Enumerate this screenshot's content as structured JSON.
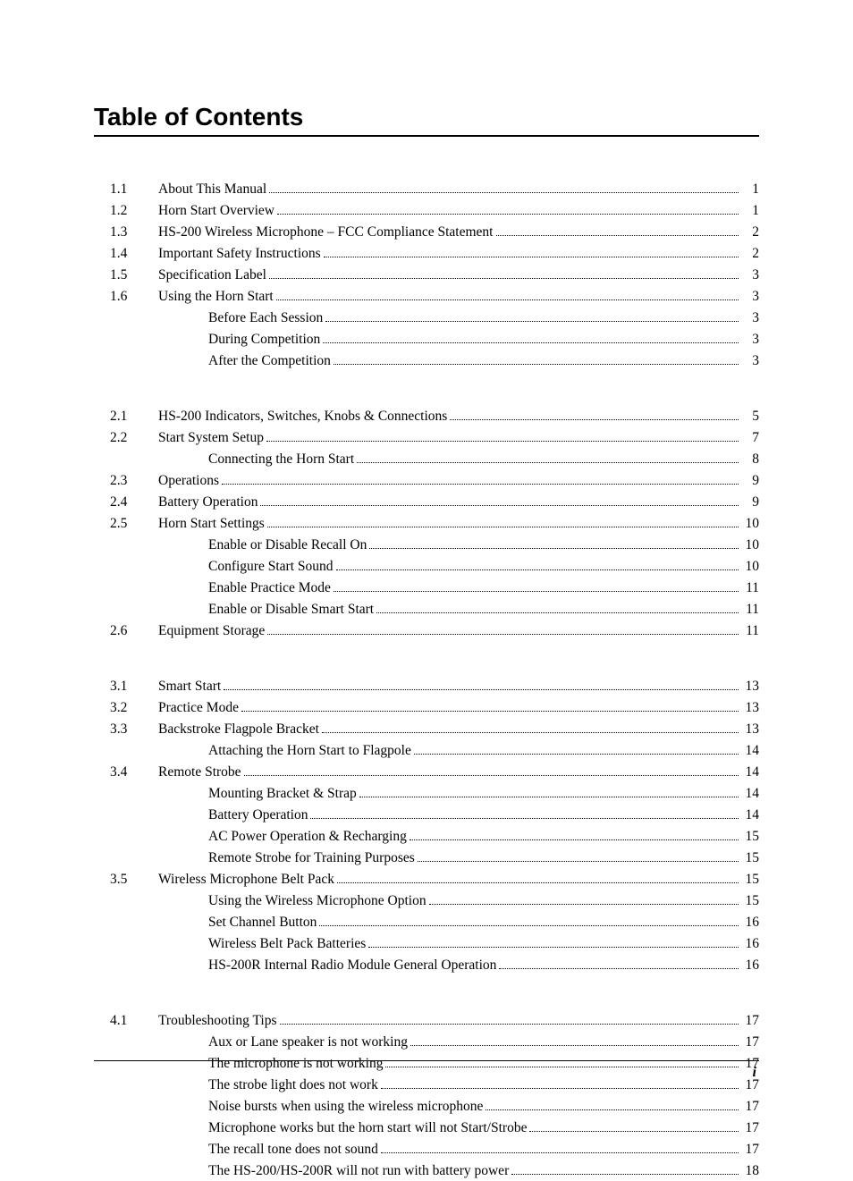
{
  "heading": "Table of Contents",
  "page_number": "i",
  "sections": {
    "s1": [
      {
        "num": "1.1",
        "title": "About This Manual",
        "page": "1",
        "sub": false
      },
      {
        "num": "1.2",
        "title": "Horn Start Overview",
        "page": "1",
        "sub": false
      },
      {
        "num": "1.3",
        "title": "HS-200 Wireless Microphone – FCC Compliance Statement",
        "page": "2",
        "sub": false
      },
      {
        "num": "1.4",
        "title": "Important Safety Instructions",
        "page": "2",
        "sub": false
      },
      {
        "num": "1.5",
        "title": "Specification Label",
        "page": "3",
        "sub": false
      },
      {
        "num": "1.6",
        "title": "Using the Horn Start",
        "page": "3",
        "sub": false
      },
      {
        "num": "",
        "title": "Before Each Session",
        "page": "3",
        "sub": true
      },
      {
        "num": "",
        "title": "During Competition",
        "page": "3",
        "sub": true
      },
      {
        "num": "",
        "title": "After the Competition",
        "page": "3",
        "sub": true
      }
    ],
    "s2": [
      {
        "num": "2.1",
        "title": "HS-200 Indicators, Switches, Knobs & Connections",
        "page": "5",
        "sub": false
      },
      {
        "num": "2.2",
        "title": "Start System Setup",
        "page": "7",
        "sub": false
      },
      {
        "num": "",
        "title": "Connecting the Horn Start",
        "page": "8",
        "sub": true
      },
      {
        "num": "2.3",
        "title": "Operations",
        "page": "9",
        "sub": false
      },
      {
        "num": "2.4",
        "title": "Battery Operation",
        "page": "9",
        "sub": false
      },
      {
        "num": "2.5",
        "title": "Horn Start Settings",
        "page": "10",
        "sub": false
      },
      {
        "num": "",
        "title": "Enable or Disable Recall On",
        "page": "10",
        "sub": true
      },
      {
        "num": "",
        "title": "Configure Start Sound",
        "page": "10",
        "sub": true
      },
      {
        "num": "",
        "title": "Enable Practice Mode",
        "page": "11",
        "sub": true
      },
      {
        "num": "",
        "title": "Enable or Disable Smart Start",
        "page": "11",
        "sub": true
      },
      {
        "num": "2.6",
        "title": "Equipment Storage",
        "page": "11",
        "sub": false
      }
    ],
    "s3": [
      {
        "num": "3.1",
        "title": "Smart Start",
        "page": "13",
        "sub": false
      },
      {
        "num": "3.2",
        "title": "Practice Mode",
        "page": "13",
        "sub": false
      },
      {
        "num": "3.3",
        "title": "Backstroke Flagpole Bracket",
        "page": "13",
        "sub": false
      },
      {
        "num": "",
        "title": "Attaching the Horn Start to Flagpole",
        "page": "14",
        "sub": true
      },
      {
        "num": "3.4",
        "title": "Remote Strobe",
        "page": "14",
        "sub": false
      },
      {
        "num": "",
        "title": "Mounting Bracket & Strap",
        "page": "14",
        "sub": true
      },
      {
        "num": "",
        "title": "Battery Operation",
        "page": "14",
        "sub": true
      },
      {
        "num": "",
        "title": "AC Power Operation & Recharging",
        "page": "15",
        "sub": true
      },
      {
        "num": "",
        "title": "Remote Strobe for Training Purposes",
        "page": "15",
        "sub": true
      },
      {
        "num": "3.5",
        "title": "Wireless Microphone Belt Pack",
        "page": "15",
        "sub": false
      },
      {
        "num": "",
        "title": "Using the Wireless Microphone Option",
        "page": "15",
        "sub": true
      },
      {
        "num": "",
        "title": "Set Channel Button",
        "page": "16",
        "sub": true
      },
      {
        "num": "",
        "title": "Wireless Belt Pack Batteries",
        "page": "16",
        "sub": true
      },
      {
        "num": "",
        "title": "HS-200R Internal Radio Module General Operation",
        "page": "16",
        "sub": true
      }
    ],
    "s4": [
      {
        "num": "4.1",
        "title": "Troubleshooting Tips",
        "page": "17",
        "sub": false
      },
      {
        "num": "",
        "title": "Aux or Lane speaker is not working",
        "page": "17",
        "sub": true
      },
      {
        "num": "",
        "title": "The microphone is not working",
        "page": "17",
        "sub": true
      },
      {
        "num": "",
        "title": "The strobe light does not work",
        "page": "17",
        "sub": true
      },
      {
        "num": "",
        "title": "Noise bursts when using the wireless microphone",
        "page": "17",
        "sub": true
      },
      {
        "num": "",
        "title": "Microphone works but the horn start will not Start/Strobe",
        "page": "17",
        "sub": true
      },
      {
        "num": "",
        "title": "The recall tone does not sound",
        "page": "17",
        "sub": true
      },
      {
        "num": "",
        "title": "The HS-200/HS-200R will not run with battery power",
        "page": "18",
        "sub": true
      }
    ]
  }
}
